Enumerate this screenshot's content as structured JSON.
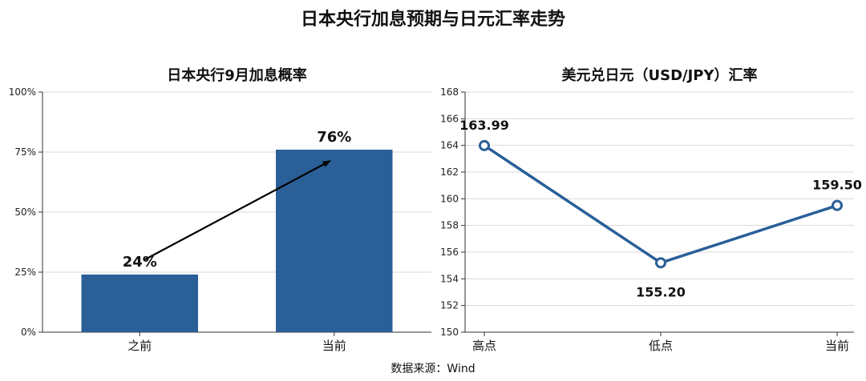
{
  "figure": {
    "title": "日本央行加息预期与日元汇率走势",
    "source": "数据来源：Wind"
  },
  "chart_data": [
    {
      "type": "bar",
      "title": "日本央行9月加息概率",
      "categories": [
        "之前",
        "当前"
      ],
      "values": [
        24,
        76
      ],
      "value_labels": [
        "24%",
        "76%"
      ],
      "ylim": [
        0,
        100
      ],
      "yticks": [
        0,
        25,
        50,
        75,
        100
      ],
      "ytick_labels": [
        "0%",
        "25%",
        "50%",
        "75%",
        "100%"
      ],
      "grid": true,
      "color": "#2a5f98",
      "annotation": "arrow from 之前 to 当前"
    },
    {
      "type": "line",
      "title": "美元兑日元（USD/JPY）汇率",
      "categories": [
        "高点",
        "低点",
        "当前"
      ],
      "values": [
        163.99,
        155.2,
        159.5
      ],
      "value_labels": [
        "163.99",
        "155.20",
        "159.50"
      ],
      "ylim": [
        150,
        168
      ],
      "yticks": [
        150,
        152,
        154,
        156,
        158,
        160,
        162,
        164,
        166,
        168
      ],
      "ytick_labels": [
        "150",
        "152",
        "154",
        "156",
        "158",
        "160",
        "162",
        "164",
        "166",
        "168"
      ],
      "grid": true,
      "color": "#2a5f98"
    }
  ]
}
